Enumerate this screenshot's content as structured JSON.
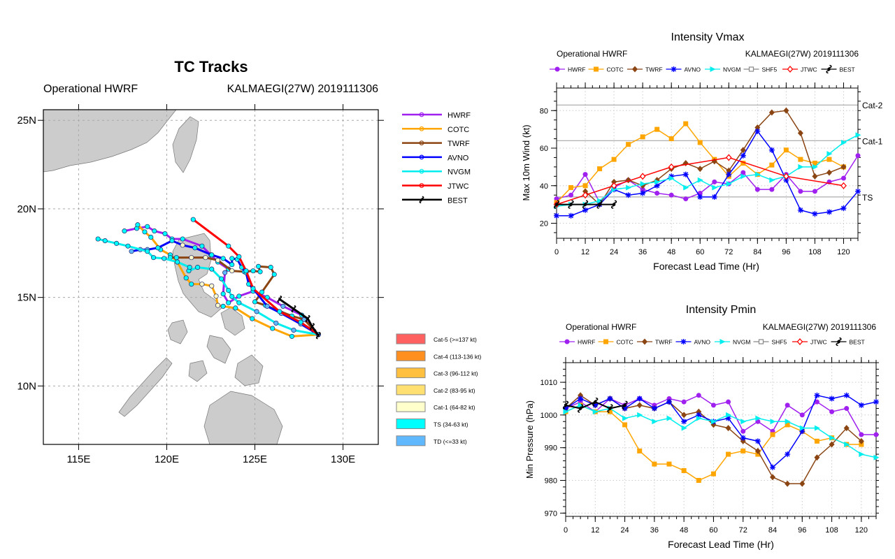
{
  "colors": {
    "HWRF": "#a020f0",
    "COTC": "#ffa500",
    "TWRF": "#8b4513",
    "AVNO": "#0000ff",
    "NVGM": "#00eeee",
    "SHF5": "#888888",
    "JTWC": "#ff0000",
    "BEST": "#000000"
  },
  "intensity_legend": [
    {
      "label": "Cat-5 (>=137 kt)",
      "color": "#ff6060"
    },
    {
      "label": "Cat-4 (113-136 kt)",
      "color": "#ff9020"
    },
    {
      "label": "Cat-3 (96-112 kt)",
      "color": "#ffc040"
    },
    {
      "label": "Cat-2 (83-95 kt)",
      "color": "#ffe070"
    },
    {
      "label": "Cat-1 (64-82 kt)",
      "color": "#ffffcc"
    },
    {
      "label": "TS (34-63 kt)",
      "color": "#00ffff"
    },
    {
      "label": "TD (<=33 kt)",
      "color": "#60b8ff"
    }
  ],
  "chart_data": [
    {
      "type": "line",
      "title": "TC Tracks",
      "subtitle_left": "Operational HWRF",
      "subtitle_right": "KALMAEGI(27W) 2019111306",
      "xlim": [
        113,
        132
      ],
      "ylim": [
        6.7,
        25.6
      ],
      "xticks": [
        "115E",
        "120E",
        "125E",
        "130E"
      ],
      "xtick_values": [
        115,
        120,
        125,
        130
      ],
      "yticks": [
        "10N",
        "15N",
        "20N",
        "25N"
      ],
      "ytick_values": [
        10,
        15,
        20,
        25
      ],
      "grid": true,
      "legend": "right",
      "series": [
        {
          "name": "HWRF",
          "lon": [
            128.6,
            128.35,
            127.66,
            126.6,
            125.7,
            124.9,
            124.1,
            123.5,
            123.2,
            123.3,
            123.5,
            122.9,
            122.5,
            122.0,
            120.9,
            120.3,
            119.9,
            119.3,
            118.9,
            118.3,
            117.6
          ],
          "lat": [
            12.9,
            13.1,
            14.0,
            14.5,
            15.0,
            15.35,
            15.07,
            14.7,
            15.2,
            16.4,
            16.6,
            17.0,
            17.4,
            17.9,
            18.3,
            18.3,
            18.6,
            18.75,
            19.0,
            18.9,
            18.75
          ]
        },
        {
          "name": "COTC",
          "lon": [
            128.6,
            127.1,
            126.0,
            124.85,
            123.9,
            123.2,
            122.9,
            122.8,
            122.55,
            122.0,
            121.4,
            121.1,
            120.6,
            120.2,
            119.65,
            119.1,
            118.75,
            118.35
          ],
          "lat": [
            12.9,
            12.8,
            13.25,
            13.8,
            14.4,
            14.5,
            14.55,
            15.07,
            15.65,
            15.75,
            15.75,
            16.1,
            17.0,
            17.4,
            17.7,
            18.4,
            18.7,
            19.1
          ]
        },
        {
          "name": "TWRF",
          "lon": [
            128.6,
            127.8,
            127.1,
            125.6,
            125.0,
            125.4,
            126.1,
            125.9,
            125.2,
            125.3,
            124.9,
            124.4,
            123.7,
            122.9,
            122.2,
            121.4,
            120.55,
            120.2
          ],
          "lat": [
            12.9,
            13.75,
            13.95,
            14.55,
            14.75,
            15.3,
            16.3,
            16.7,
            16.75,
            16.45,
            16.5,
            16.45,
            16.5,
            17.1,
            17.25,
            17.25,
            17.25,
            17.25
          ]
        },
        {
          "name": "AVNO",
          "lon": [
            128.6,
            127.6,
            126.5,
            125.7,
            124.9,
            124.65,
            124.5,
            124.25,
            124.0,
            123.7,
            123.7,
            123.2,
            122.55,
            121.6,
            120.9,
            120.3,
            119.5,
            118.9,
            118.5,
            118.0
          ],
          "lat": [
            12.9,
            13.5,
            14.1,
            14.5,
            15.5,
            15.75,
            16.4,
            16.7,
            17.15,
            17.2,
            16.85,
            17.2,
            17.4,
            17.8,
            17.95,
            18.2,
            17.8,
            17.7,
            17.7,
            17.6
          ]
        },
        {
          "name": "NVGM",
          "lon": [
            128.6,
            127.2,
            126.2,
            125.1,
            124.1,
            123.7,
            123.5,
            123.1,
            122.55,
            121.75,
            121.25,
            121.3,
            120.6,
            119.85,
            119.25,
            118.9,
            117.8,
            117.15,
            116.5,
            116.1
          ],
          "lat": [
            12.9,
            13.15,
            13.55,
            14.2,
            14.7,
            15.05,
            15.4,
            16.05,
            16.6,
            16.7,
            16.5,
            16.7,
            17.0,
            17.2,
            17.25,
            17.6,
            17.9,
            18.05,
            18.2,
            18.3
          ]
        },
        {
          "name": "JTWC",
          "lon": [
            128.6,
            127.6,
            126.4,
            124.9,
            124.5,
            124.1,
            123.5,
            121.5
          ],
          "lat": [
            12.9,
            13.6,
            14.2,
            15.5,
            16.5,
            17.3,
            17.9,
            19.4
          ]
        },
        {
          "name": "BEST",
          "lon": [
            128.6,
            128.25,
            128.0,
            127.2,
            126.4
          ],
          "lat": [
            12.85,
            13.35,
            13.8,
            14.35,
            14.9
          ]
        }
      ]
    },
    {
      "type": "line",
      "title": "Intensity Vmax",
      "subtitle_left": "Operational HWRF",
      "subtitle_right": "KALMAEGI(27W) 2019111306",
      "xlabel": "Forecast Lead Time (Hr)",
      "ylabel": "Max 10m Wind (kt)",
      "xlim": [
        0,
        126
      ],
      "ylim": [
        12,
        92
      ],
      "xticks": [
        0,
        12,
        24,
        36,
        48,
        60,
        72,
        84,
        96,
        108,
        120
      ],
      "yticks": [
        20,
        40,
        60,
        80
      ],
      "grid": true,
      "legend": "top",
      "reference_lines": [
        {
          "label": "Cat-2",
          "value": 83
        },
        {
          "label": "Cat-1",
          "value": 64
        },
        {
          "label": "TS",
          "value": 34
        }
      ],
      "series": [
        {
          "name": "HWRF",
          "marker": "circle",
          "x": [
            0,
            6,
            12,
            18,
            24,
            30,
            36,
            42,
            48,
            54,
            60,
            66,
            72,
            78,
            84,
            90,
            96,
            102,
            108,
            114,
            120,
            126
          ],
          "y": [
            33,
            35,
            46,
            31,
            39,
            43,
            38,
            36,
            35,
            33,
            36,
            42,
            41,
            47,
            38,
            38,
            46,
            37,
            37,
            42,
            44,
            56
          ]
        },
        {
          "name": "COTC",
          "marker": "square",
          "x": [
            0,
            6,
            12,
            18,
            24,
            30,
            36,
            42,
            48,
            54,
            60,
            66,
            72,
            78,
            84,
            90,
            96,
            102,
            108,
            114,
            120
          ],
          "y": [
            31,
            39,
            40,
            49,
            54,
            62,
            66,
            70,
            65,
            73,
            63,
            54,
            45,
            52,
            46,
            51,
            59,
            54,
            52,
            54,
            50
          ]
        },
        {
          "name": "TWRF",
          "marker": "diamond",
          "x": [
            12,
            18,
            24,
            30,
            36,
            42,
            48,
            54,
            60,
            66,
            72,
            78,
            84,
            90,
            96,
            102,
            108,
            114,
            120
          ],
          "y": [
            37,
            30,
            42,
            43,
            40,
            43,
            49,
            52,
            49,
            53,
            48,
            59,
            71,
            79,
            80,
            68,
            45,
            47,
            50
          ]
        },
        {
          "name": "AVNO",
          "marker": "asterisk",
          "x": [
            0,
            6,
            12,
            18,
            24,
            30,
            36,
            42,
            48,
            54,
            60,
            66,
            72,
            78,
            84,
            90,
            96,
            102,
            108,
            114,
            120,
            126
          ],
          "y": [
            24,
            24,
            27,
            30,
            38,
            35,
            36,
            40,
            45,
            46,
            34,
            34,
            46,
            56,
            69,
            59,
            43,
            27,
            25,
            26,
            28,
            37
          ]
        },
        {
          "name": "NVGM",
          "marker": "triangle",
          "x": [
            0,
            6,
            12,
            18,
            24,
            30,
            36,
            42,
            48,
            54,
            60,
            66,
            72,
            78,
            84,
            90,
            96,
            102,
            108,
            114,
            120,
            126
          ],
          "y": [
            29,
            30,
            30,
            32,
            38,
            39,
            41,
            42,
            44,
            39,
            43,
            39,
            41,
            45,
            46,
            43,
            45,
            50,
            50,
            57,
            63,
            67
          ]
        },
        {
          "name": "SHF5",
          "marker": "square-open",
          "x": [],
          "y": []
        },
        {
          "name": "JTWC",
          "marker": "diamond-open",
          "x": [
            0,
            12,
            24,
            36,
            48,
            72,
            96,
            120
          ],
          "y": [
            30,
            35,
            40,
            45,
            50,
            55,
            45,
            40
          ]
        },
        {
          "name": "BEST",
          "marker": "hurricane",
          "x": [
            0,
            6,
            12,
            18,
            24
          ],
          "y": [
            30,
            30,
            30,
            30,
            30
          ]
        }
      ]
    },
    {
      "type": "line",
      "title": "Intensity Pmin",
      "subtitle_left": "Operational HWRF",
      "subtitle_right": "KALMAEGI(27W) 2019111306",
      "xlabel": "Forecast Lead Time (Hr)",
      "ylabel": "Min Pressure (hPa)",
      "xlim": [
        0,
        126
      ],
      "ylim": [
        969,
        1016
      ],
      "xticks": [
        0,
        12,
        24,
        36,
        48,
        60,
        72,
        84,
        96,
        108,
        120
      ],
      "yticks": [
        970,
        980,
        990,
        1000,
        1010
      ],
      "grid": true,
      "legend": "top",
      "series": [
        {
          "name": "HWRF",
          "marker": "circle",
          "x": [
            0,
            6,
            12,
            18,
            24,
            30,
            36,
            42,
            48,
            54,
            60,
            66,
            72,
            78,
            84,
            90,
            96,
            102,
            108,
            114,
            120,
            126
          ],
          "y": [
            1002,
            1004,
            1001,
            1005,
            1003,
            1005,
            1003,
            1005,
            1004,
            1006,
            1003,
            1004,
            995,
            998,
            995,
            1003,
            1000,
            1004,
            1001,
            1002,
            994,
            994
          ]
        },
        {
          "name": "COTC",
          "marker": "square",
          "x": [
            0,
            6,
            12,
            18,
            24,
            30,
            36,
            42,
            48,
            54,
            60,
            66,
            72,
            78,
            84,
            90,
            96,
            102,
            108,
            114,
            120
          ],
          "y": [
            1001,
            1003,
            1001,
            1001,
            997,
            989,
            985,
            985,
            983,
            980,
            982,
            988,
            989,
            988,
            994,
            997,
            995,
            992,
            993,
            991,
            991
          ]
        },
        {
          "name": "TWRF",
          "marker": "diamond",
          "x": [
            0,
            6,
            12,
            18,
            24,
            30,
            36,
            42,
            48,
            54,
            60,
            66,
            72,
            78,
            84,
            90,
            96,
            102,
            108,
            114,
            120
          ],
          "y": [
            1002,
            1006,
            1003,
            1005,
            1002,
            1003,
            1002,
            1004,
            1000,
            1001,
            997,
            996,
            992,
            989,
            981,
            979,
            979,
            987,
            991,
            996,
            992
          ]
        },
        {
          "name": "AVNO",
          "marker": "asterisk",
          "x": [
            0,
            6,
            12,
            18,
            24,
            30,
            36,
            42,
            48,
            54,
            60,
            66,
            72,
            78,
            84,
            90,
            96,
            102,
            108,
            114,
            120,
            126
          ],
          "y": [
            1002,
            1005,
            1003,
            1005,
            1002,
            1005,
            1002,
            1004,
            998,
            1000,
            998,
            999,
            993,
            992,
            984,
            988,
            995,
            1006,
            1005,
            1006,
            1003,
            1004
          ]
        },
        {
          "name": "NVGM",
          "marker": "triangle",
          "x": [
            0,
            6,
            12,
            18,
            24,
            30,
            36,
            42,
            48,
            54,
            60,
            66,
            72,
            78,
            84,
            90,
            96,
            102,
            108,
            114,
            120,
            126
          ],
          "y": [
            1001,
            1003,
            1001,
            1002,
            999,
            1000,
            998,
            999,
            996,
            999,
            998,
            1000,
            998,
            999,
            998,
            998,
            996,
            996,
            993,
            991,
            988,
            987
          ]
        },
        {
          "name": "SHF5",
          "marker": "square-open",
          "x": [],
          "y": []
        },
        {
          "name": "JTWC",
          "marker": "diamond-open",
          "x": [],
          "y": []
        },
        {
          "name": "BEST",
          "marker": "hurricane",
          "x": [
            0,
            6,
            12,
            18,
            24
          ],
          "y": [
            1003,
            1002,
            1004,
            1002,
            1003
          ]
        }
      ]
    }
  ]
}
